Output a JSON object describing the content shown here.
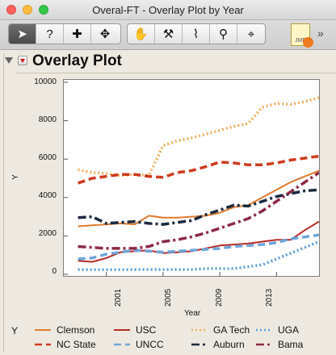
{
  "window": {
    "title": "Overal-FT - Overlay Plot by Year"
  },
  "toolbar": {
    "tools": [
      {
        "name": "arrow-tool",
        "glyph": "➤"
      },
      {
        "name": "help-tool",
        "glyph": "?"
      },
      {
        "name": "crosshair-tool",
        "glyph": "✚"
      },
      {
        "name": "move-tool",
        "glyph": "✥"
      },
      {
        "name": "grabber-tool",
        "glyph": "✋"
      },
      {
        "name": "brush-tool",
        "glyph": "⚒"
      },
      {
        "name": "lasso-tool",
        "glyph": "⌇"
      },
      {
        "name": "zoom-tool",
        "glyph": "⚲"
      },
      {
        "name": "scaler-tool",
        "glyph": "⌖"
      }
    ],
    "more": "»",
    "jmp_label": "JMP"
  },
  "section": {
    "title": "Overlay Plot"
  },
  "chart_data": {
    "type": "line",
    "title": "",
    "xlabel": "Year",
    "ylabel": "Y",
    "xlim": [
      1998,
      2016
    ],
    "ylim": [
      0,
      10000
    ],
    "yticks": [
      0,
      2000,
      4000,
      6000,
      8000,
      10000
    ],
    "xticks": [
      2001,
      2005,
      2009,
      2013
    ],
    "legend_title": "Y",
    "legend_position": "bottom",
    "series": [
      {
        "name": "Clemson",
        "color": "#e07b2e",
        "style": "solid",
        "x": [
          1999,
          2000,
          2001,
          2002,
          2003,
          2004,
          2005,
          2006,
          2007,
          2008,
          2009,
          2010,
          2011,
          2012,
          2013,
          2014,
          2015,
          2016
        ],
        "y": [
          2500,
          2550,
          2600,
          2650,
          2600,
          3050,
          2950,
          2950,
          3000,
          3050,
          3200,
          3500,
          3600,
          4000,
          4400,
          4800,
          5100,
          5400
        ]
      },
      {
        "name": "USC",
        "color": "#b52b27",
        "style": "solid",
        "x": [
          1999,
          2000,
          2001,
          2002,
          2003,
          2004,
          2005,
          2006,
          2007,
          2008,
          2009,
          2010,
          2011,
          2012,
          2013,
          2014,
          2015,
          2016
        ],
        "y": [
          700,
          650,
          850,
          1150,
          1200,
          1250,
          1100,
          1150,
          1200,
          1350,
          1500,
          1550,
          1600,
          1700,
          1800,
          1800,
          2300,
          2750
        ]
      },
      {
        "name": "GA Tech",
        "color": "#f2b061",
        "style": "dotted",
        "x": [
          1999,
          2000,
          2001,
          2002,
          2003,
          2004,
          2005,
          2006,
          2007,
          2008,
          2009,
          2010,
          2011,
          2012,
          2013,
          2014,
          2015,
          2016
        ],
        "y": [
          5450,
          5300,
          5250,
          5150,
          5200,
          5150,
          6700,
          6950,
          7100,
          7300,
          7500,
          7700,
          7850,
          8700,
          8900,
          8850,
          9000,
          9200
        ]
      },
      {
        "name": "UGA",
        "color": "#5d9ee0",
        "style": "dotted",
        "x": [
          1999,
          2000,
          2001,
          2002,
          2003,
          2004,
          2005,
          2006,
          2007,
          2008,
          2009,
          2010,
          2011,
          2012,
          2013,
          2014,
          2015,
          2016
        ],
        "y": [
          250,
          250,
          250,
          250,
          250,
          250,
          250,
          250,
          250,
          300,
          300,
          300,
          400,
          500,
          800,
          1100,
          1400,
          1700
        ]
      },
      {
        "name": "NC State",
        "color": "#cf3a1e",
        "style": "dashed",
        "x": [
          1999,
          2000,
          2001,
          2002,
          2003,
          2004,
          2005,
          2006,
          2007,
          2008,
          2009,
          2010,
          2011,
          2012,
          2013,
          2014,
          2015,
          2016
        ],
        "y": [
          4750,
          5000,
          5100,
          5200,
          5200,
          5100,
          5050,
          5300,
          5400,
          5600,
          5850,
          5800,
          5700,
          5700,
          5800,
          5950,
          6050,
          6150
        ]
      },
      {
        "name": "UNCC",
        "color": "#6ea6d8",
        "style": "dashed",
        "x": [
          1999,
          2000,
          2001,
          2002,
          2003,
          2004,
          2005,
          2006,
          2007,
          2008,
          2009,
          2010,
          2011,
          2012,
          2013,
          2014,
          2015,
          2016
        ],
        "y": [
          800,
          850,
          1050,
          1150,
          1250,
          1200,
          1150,
          1200,
          1250,
          1300,
          1350,
          1450,
          1500,
          1550,
          1650,
          1850,
          1950,
          2050
        ]
      },
      {
        "name": "Auburn",
        "color": "#1b2a3f",
        "style": "dashdot",
        "x": [
          1999,
          2000,
          2001,
          2002,
          2003,
          2004,
          2005,
          2006,
          2007,
          2008,
          2009,
          2010,
          2011,
          2012,
          2013,
          2014,
          2015,
          2016
        ],
        "y": [
          2950,
          3000,
          2650,
          2700,
          2750,
          2650,
          2600,
          2700,
          2800,
          3100,
          3350,
          3600,
          3550,
          3800,
          4050,
          4200,
          4350,
          4400
        ]
      },
      {
        "name": "Bama",
        "color": "#8c2a45",
        "style": "dashdot",
        "x": [
          1999,
          2000,
          2001,
          2002,
          2003,
          2004,
          2005,
          2006,
          2007,
          2008,
          2009,
          2010,
          2011,
          2012,
          2013,
          2014,
          2015,
          2016
        ],
        "y": [
          1450,
          1400,
          1350,
          1350,
          1350,
          1450,
          1700,
          1800,
          1950,
          2150,
          2400,
          2650,
          2900,
          3300,
          3800,
          4300,
          4800,
          5300
        ]
      }
    ]
  },
  "y_tick_labels": [
    "0",
    "2000",
    "4000",
    "6000",
    "8000",
    "10000"
  ],
  "x_tick_labels": [
    "2001",
    "2005",
    "2009",
    "2013"
  ]
}
